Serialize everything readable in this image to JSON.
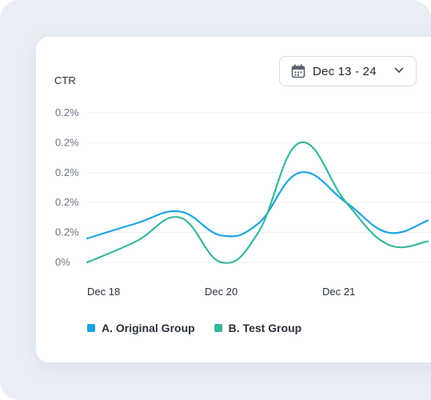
{
  "date_range": {
    "label": "Dec 13 - 24",
    "icon": "calendar-icon",
    "dropdown_icon": "chevron-down-icon"
  },
  "chart_data": {
    "type": "line",
    "ylabel": "CTR",
    "y_tick_labels": [
      "0.2%",
      "0.2%",
      "0.2%",
      "0.2%",
      "0.2%",
      "0%"
    ],
    "x_tick_labels": [
      "Dec 18",
      "Dec 20",
      "Dec 21"
    ],
    "grid": true,
    "legend_position": "bottom-left",
    "series": [
      {
        "name": "A. Original Group",
        "color": "#1ea4e0",
        "values": [
          0.08,
          0.13,
          0.17,
          0.09,
          0.13,
          0.3,
          0.2,
          0.1,
          0.14
        ]
      },
      {
        "name": "B. Test Group",
        "color": "#37b79e",
        "values": [
          0.0,
          0.07,
          0.15,
          0.0,
          0.1,
          0.4,
          0.2,
          0.06,
          0.07
        ]
      }
    ],
    "x": [
      0,
      1,
      2,
      3,
      4,
      5,
      6,
      7,
      8
    ],
    "ylim": [
      0,
      0.5
    ]
  }
}
